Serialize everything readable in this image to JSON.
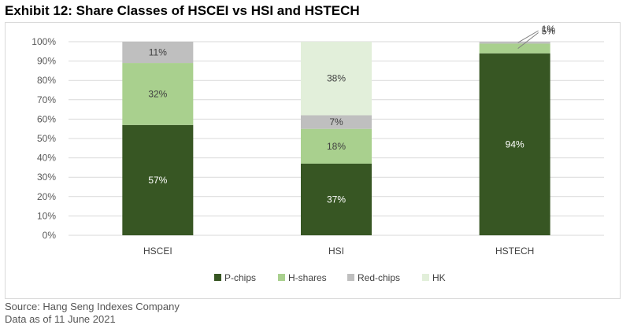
{
  "title": "Exhibit 12: Share Classes of HSCEI vs HSI and HSTECH",
  "chart_data": {
    "type": "bar",
    "stacked": true,
    "categories": [
      "HSCEI",
      "HSI",
      "HSTECH"
    ],
    "series": [
      {
        "name": "P-chips",
        "color": "#375623",
        "label_color": "#ffffff",
        "values": [
          57,
          37,
          94
        ],
        "labels": [
          "57%",
          "37%",
          "94%"
        ]
      },
      {
        "name": "H-shares",
        "color": "#a9d08e",
        "label_color": "#404040",
        "values": [
          32,
          18,
          5
        ],
        "labels": [
          "32%",
          "18%",
          "5%"
        ]
      },
      {
        "name": "Red-chips",
        "color": "#bfbfbf",
        "label_color": "#404040",
        "values": [
          11,
          7,
          1
        ],
        "labels": [
          "11%",
          "7%",
          "1%"
        ]
      },
      {
        "name": "HK",
        "color": "#e2efda",
        "label_color": "#404040",
        "values": [
          0,
          38,
          0
        ],
        "labels": [
          "",
          "38%",
          ""
        ]
      }
    ],
    "yticks": [
      "0%",
      "10%",
      "20%",
      "30%",
      "40%",
      "50%",
      "60%",
      "70%",
      "80%",
      "90%",
      "100%"
    ],
    "ylim": [
      0,
      100
    ],
    "grid": true,
    "legend": "bottom",
    "xlabel": "",
    "ylabel": ""
  },
  "footnotes": {
    "source": "Source: Hang Seng Indexes Company",
    "as_of": "Data as of 11 June 2021"
  }
}
